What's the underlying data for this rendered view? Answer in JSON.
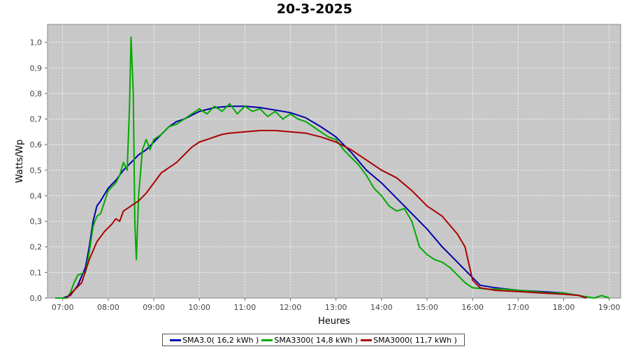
{
  "chart_data": {
    "type": "line",
    "title": "20-3-2025",
    "xlabel": "Heures",
    "ylabel": "Watts/Wp",
    "xlim": [
      "06:40",
      "19:15"
    ],
    "ylim": [
      0,
      1.07
    ],
    "x_ticks": [
      "07:00",
      "08:00",
      "09:00",
      "10:00",
      "11:00",
      "12:00",
      "13:00",
      "14:00",
      "15:00",
      "16:00",
      "17:00",
      "18:00",
      "19:00"
    ],
    "y_ticks": [
      "0,0",
      "0,1",
      "0,2",
      "0,3",
      "0,4",
      "0,5",
      "0,6",
      "0,7",
      "0,8",
      "0,9",
      "1,0"
    ],
    "grid": true,
    "legend_position": "bottom",
    "series": [
      {
        "name": "SMA3.0( 16,2 kWh )",
        "color": "#0000aa",
        "points": [
          [
            "07:00",
            0.0
          ],
          [
            "07:10",
            0.01
          ],
          [
            "07:20",
            0.05
          ],
          [
            "07:30",
            0.12
          ],
          [
            "07:35",
            0.2
          ],
          [
            "07:40",
            0.3
          ],
          [
            "07:45",
            0.36
          ],
          [
            "07:50",
            0.38
          ],
          [
            "08:00",
            0.43
          ],
          [
            "08:10",
            0.46
          ],
          [
            "08:20",
            0.5
          ],
          [
            "08:30",
            0.53
          ],
          [
            "08:40",
            0.56
          ],
          [
            "08:50",
            0.58
          ],
          [
            "09:00",
            0.61
          ],
          [
            "09:10",
            0.64
          ],
          [
            "09:20",
            0.67
          ],
          [
            "09:30",
            0.69
          ],
          [
            "09:40",
            0.7
          ],
          [
            "10:00",
            0.73
          ],
          [
            "10:20",
            0.745
          ],
          [
            "10:40",
            0.75
          ],
          [
            "11:00",
            0.75
          ],
          [
            "11:20",
            0.745
          ],
          [
            "11:40",
            0.735
          ],
          [
            "12:00",
            0.725
          ],
          [
            "12:20",
            0.705
          ],
          [
            "12:40",
            0.67
          ],
          [
            "13:00",
            0.63
          ],
          [
            "13:20",
            0.57
          ],
          [
            "13:40",
            0.5
          ],
          [
            "14:00",
            0.45
          ],
          [
            "14:20",
            0.39
          ],
          [
            "14:40",
            0.33
          ],
          [
            "15:00",
            0.27
          ],
          [
            "15:20",
            0.2
          ],
          [
            "15:40",
            0.14
          ],
          [
            "16:00",
            0.08
          ],
          [
            "16:10",
            0.05
          ],
          [
            "16:30",
            0.04
          ],
          [
            "17:00",
            0.03
          ],
          [
            "17:30",
            0.025
          ],
          [
            "18:00",
            0.02
          ],
          [
            "18:20",
            0.01
          ],
          [
            "18:30",
            0.0
          ]
        ]
      },
      {
        "name": "SMA3300( 14,8 kWh )",
        "color": "#00aa00",
        "points": [
          [
            "06:50",
            0.0
          ],
          [
            "07:05",
            0.0
          ],
          [
            "07:10",
            0.02
          ],
          [
            "07:15",
            0.06
          ],
          [
            "07:20",
            0.09
          ],
          [
            "07:30",
            0.1
          ],
          [
            "07:35",
            0.18
          ],
          [
            "07:40",
            0.28
          ],
          [
            "07:45",
            0.32
          ],
          [
            "07:50",
            0.33
          ],
          [
            "08:00",
            0.42
          ],
          [
            "08:10",
            0.45
          ],
          [
            "08:15",
            0.48
          ],
          [
            "08:20",
            0.53
          ],
          [
            "08:25",
            0.5
          ],
          [
            "08:28",
            0.75
          ],
          [
            "08:30",
            1.02
          ],
          [
            "08:33",
            0.8
          ],
          [
            "08:35",
            0.3
          ],
          [
            "08:37",
            0.15
          ],
          [
            "08:40",
            0.4
          ],
          [
            "08:45",
            0.58
          ],
          [
            "08:50",
            0.62
          ],
          [
            "08:55",
            0.58
          ],
          [
            "09:00",
            0.62
          ],
          [
            "09:10",
            0.64
          ],
          [
            "09:20",
            0.67
          ],
          [
            "09:30",
            0.68
          ],
          [
            "09:40",
            0.7
          ],
          [
            "09:50",
            0.72
          ],
          [
            "10:00",
            0.74
          ],
          [
            "10:10",
            0.72
          ],
          [
            "10:20",
            0.75
          ],
          [
            "10:30",
            0.73
          ],
          [
            "10:40",
            0.76
          ],
          [
            "10:50",
            0.72
          ],
          [
            "11:00",
            0.75
          ],
          [
            "11:10",
            0.73
          ],
          [
            "11:20",
            0.74
          ],
          [
            "11:30",
            0.71
          ],
          [
            "11:40",
            0.73
          ],
          [
            "11:50",
            0.7
          ],
          [
            "12:00",
            0.72
          ],
          [
            "12:10",
            0.7
          ],
          [
            "12:20",
            0.69
          ],
          [
            "12:30",
            0.67
          ],
          [
            "12:40",
            0.65
          ],
          [
            "12:50",
            0.63
          ],
          [
            "13:00",
            0.62
          ],
          [
            "13:10",
            0.58
          ],
          [
            "13:20",
            0.55
          ],
          [
            "13:30",
            0.52
          ],
          [
            "13:40",
            0.48
          ],
          [
            "13:50",
            0.43
          ],
          [
            "14:00",
            0.4
          ],
          [
            "14:10",
            0.36
          ],
          [
            "14:20",
            0.34
          ],
          [
            "14:30",
            0.35
          ],
          [
            "14:40",
            0.3
          ],
          [
            "14:50",
            0.2
          ],
          [
            "15:00",
            0.17
          ],
          [
            "15:10",
            0.15
          ],
          [
            "15:20",
            0.14
          ],
          [
            "15:30",
            0.12
          ],
          [
            "15:40",
            0.09
          ],
          [
            "15:50",
            0.06
          ],
          [
            "16:00",
            0.04
          ],
          [
            "16:20",
            0.035
          ],
          [
            "16:40",
            0.035
          ],
          [
            "17:00",
            0.03
          ],
          [
            "17:20",
            0.025
          ],
          [
            "17:40",
            0.02
          ],
          [
            "18:00",
            0.02
          ],
          [
            "18:20",
            0.01
          ],
          [
            "18:40",
            0.0
          ],
          [
            "18:50",
            0.01
          ],
          [
            "19:00",
            0.0
          ]
        ]
      },
      {
        "name": "SMA3000( 11,7 kWh )",
        "color": "#aa0000",
        "points": [
          [
            "07:05",
            0.0
          ],
          [
            "07:15",
            0.03
          ],
          [
            "07:25",
            0.06
          ],
          [
            "07:35",
            0.15
          ],
          [
            "07:45",
            0.22
          ],
          [
            "07:55",
            0.26
          ],
          [
            "08:05",
            0.29
          ],
          [
            "08:10",
            0.31
          ],
          [
            "08:15",
            0.3
          ],
          [
            "08:20",
            0.34
          ],
          [
            "08:30",
            0.36
          ],
          [
            "08:40",
            0.38
          ],
          [
            "08:50",
            0.41
          ],
          [
            "09:00",
            0.45
          ],
          [
            "09:10",
            0.49
          ],
          [
            "09:20",
            0.51
          ],
          [
            "09:30",
            0.53
          ],
          [
            "09:40",
            0.56
          ],
          [
            "09:50",
            0.59
          ],
          [
            "10:00",
            0.61
          ],
          [
            "10:10",
            0.62
          ],
          [
            "10:20",
            0.63
          ],
          [
            "10:30",
            0.64
          ],
          [
            "10:40",
            0.645
          ],
          [
            "11:00",
            0.65
          ],
          [
            "11:20",
            0.655
          ],
          [
            "11:40",
            0.655
          ],
          [
            "12:00",
            0.65
          ],
          [
            "12:20",
            0.645
          ],
          [
            "12:40",
            0.63
          ],
          [
            "13:00",
            0.61
          ],
          [
            "13:20",
            0.58
          ],
          [
            "13:40",
            0.54
          ],
          [
            "14:00",
            0.5
          ],
          [
            "14:20",
            0.47
          ],
          [
            "14:40",
            0.42
          ],
          [
            "15:00",
            0.36
          ],
          [
            "15:20",
            0.32
          ],
          [
            "15:40",
            0.25
          ],
          [
            "15:50",
            0.2
          ],
          [
            "16:00",
            0.07
          ],
          [
            "16:10",
            0.04
          ],
          [
            "16:30",
            0.03
          ],
          [
            "17:00",
            0.025
          ],
          [
            "17:30",
            0.02
          ],
          [
            "18:00",
            0.015
          ],
          [
            "18:20",
            0.01
          ],
          [
            "18:30",
            0.0
          ]
        ]
      }
    ]
  }
}
